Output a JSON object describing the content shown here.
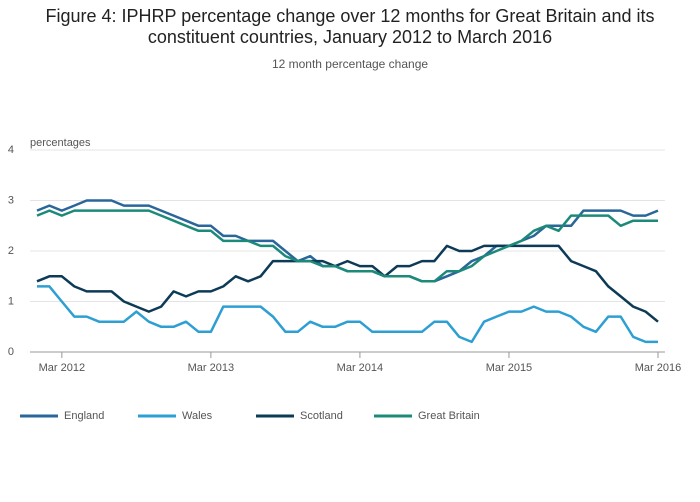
{
  "chart_data": {
    "type": "line",
    "title": "Figure 4: IPHRP percentage change over 12 months for Great Britain and its constituent countries, January 2012 to March 2016",
    "subtitle": "12 month percentage change",
    "y_label": "percentages",
    "x": [
      "2012-01",
      "2012-02",
      "2012-03",
      "2012-04",
      "2012-05",
      "2012-06",
      "2012-07",
      "2012-08",
      "2012-09",
      "2012-10",
      "2012-11",
      "2012-12",
      "2013-01",
      "2013-02",
      "2013-03",
      "2013-04",
      "2013-05",
      "2013-06",
      "2013-07",
      "2013-08",
      "2013-09",
      "2013-10",
      "2013-11",
      "2013-12",
      "2014-01",
      "2014-02",
      "2014-03",
      "2014-04",
      "2014-05",
      "2014-06",
      "2014-07",
      "2014-08",
      "2014-09",
      "2014-10",
      "2014-11",
      "2014-12",
      "2015-01",
      "2015-02",
      "2015-03",
      "2015-04",
      "2015-05",
      "2015-06",
      "2015-07",
      "2015-08",
      "2015-09",
      "2015-10",
      "2015-11",
      "2015-12",
      "2016-01",
      "2016-02",
      "2016-03"
    ],
    "xlim": [
      "2011-12",
      "2016-03"
    ],
    "xticks": [
      {
        "value": "2012-03",
        "label": "Mar 2012"
      },
      {
        "value": "2013-03",
        "label": "Mar 2013"
      },
      {
        "value": "2014-03",
        "label": "Mar 2014"
      },
      {
        "value": "2015-03",
        "label": "Mar 2015"
      },
      {
        "value": "2016-03",
        "label": "Mar 2016"
      }
    ],
    "ylim": [
      0,
      4
    ],
    "yticks": [
      0,
      1,
      2,
      3,
      4
    ],
    "grid": true,
    "legend": "bottom",
    "series": [
      {
        "name": "England",
        "color": "#2a6699",
        "values": [
          2.8,
          2.9,
          2.8,
          2.9,
          3.0,
          3.0,
          3.0,
          2.9,
          2.9,
          2.9,
          2.8,
          2.7,
          2.6,
          2.5,
          2.5,
          2.3,
          2.3,
          2.2,
          2.2,
          2.2,
          2.0,
          1.8,
          1.9,
          1.7,
          1.7,
          1.6,
          1.6,
          1.6,
          1.5,
          1.5,
          1.5,
          1.4,
          1.4,
          1.5,
          1.6,
          1.8,
          1.9,
          2.1,
          2.1,
          2.2,
          2.3,
          2.5,
          2.5,
          2.5,
          2.8,
          2.8,
          2.8,
          2.8,
          2.7,
          2.7,
          2.8
        ]
      },
      {
        "name": "Wales",
        "color": "#2d9fd3",
        "values": [
          1.3,
          1.3,
          1.0,
          0.7,
          0.7,
          0.6,
          0.6,
          0.6,
          0.8,
          0.6,
          0.5,
          0.5,
          0.6,
          0.4,
          0.4,
          0.9,
          0.9,
          0.9,
          0.9,
          0.7,
          0.4,
          0.4,
          0.6,
          0.5,
          0.5,
          0.6,
          0.6,
          0.4,
          0.4,
          0.4,
          0.4,
          0.4,
          0.6,
          0.6,
          0.3,
          0.2,
          0.6,
          0.7,
          0.8,
          0.8,
          0.9,
          0.8,
          0.8,
          0.7,
          0.5,
          0.4,
          0.7,
          0.7,
          0.3,
          0.2,
          0.2
        ]
      },
      {
        "name": "Scotland",
        "color": "#0d3a56",
        "values": [
          1.4,
          1.5,
          1.5,
          1.3,
          1.2,
          1.2,
          1.2,
          1.0,
          0.9,
          0.8,
          0.9,
          1.2,
          1.1,
          1.2,
          1.2,
          1.3,
          1.5,
          1.4,
          1.5,
          1.8,
          1.8,
          1.8,
          1.8,
          1.8,
          1.7,
          1.8,
          1.7,
          1.7,
          1.5,
          1.7,
          1.7,
          1.8,
          1.8,
          2.1,
          2.0,
          2.0,
          2.1,
          2.1,
          2.1,
          2.1,
          2.1,
          2.1,
          2.1,
          1.8,
          1.7,
          1.6,
          1.3,
          1.1,
          0.9,
          0.8,
          0.6
        ]
      },
      {
        "name": "Great Britain",
        "color": "#1c8a78",
        "values": [
          2.7,
          2.8,
          2.7,
          2.8,
          2.8,
          2.8,
          2.8,
          2.8,
          2.8,
          2.8,
          2.7,
          2.6,
          2.5,
          2.4,
          2.4,
          2.2,
          2.2,
          2.2,
          2.1,
          2.1,
          1.9,
          1.8,
          1.8,
          1.7,
          1.7,
          1.6,
          1.6,
          1.6,
          1.5,
          1.5,
          1.5,
          1.4,
          1.4,
          1.6,
          1.6,
          1.7,
          1.9,
          2.0,
          2.1,
          2.2,
          2.4,
          2.5,
          2.4,
          2.7,
          2.7,
          2.7,
          2.7,
          2.5,
          2.6,
          2.6,
          2.6
        ]
      }
    ]
  }
}
